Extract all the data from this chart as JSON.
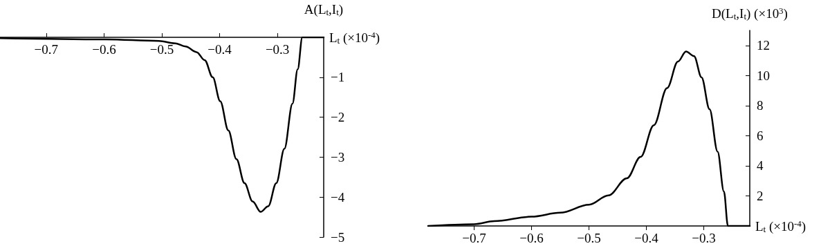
{
  "chart_data": [
    {
      "type": "line",
      "xlabel": "L$_{t}$ (×10$^{-4}$)",
      "ylabel": "A(L$_{t}$,I$_{t}$)",
      "xlim": [
        -0.78,
        -0.22
      ],
      "xticks": [
        -0.7,
        -0.6,
        -0.5,
        -0.4,
        -0.3
      ],
      "ylim": [
        -5,
        0
      ],
      "yticks": [
        -5,
        -4,
        -3,
        -2,
        -1
      ],
      "grid": false,
      "marker": "none",
      "line_style": "solid",
      "series": [
        {
          "color": "#000000",
          "x": [
            -0.78,
            -0.597,
            -0.505,
            -0.477,
            -0.459,
            -0.44,
            -0.426,
            -0.412,
            -0.399,
            -0.385,
            -0.371,
            -0.357,
            -0.343,
            -0.329,
            -0.316,
            -0.302,
            -0.288,
            -0.274,
            -0.265,
            -0.257,
            -0.22
          ],
          "values": [
            -0.02,
            -0.05,
            -0.09,
            -0.15,
            -0.23,
            -0.37,
            -0.57,
            -1.0,
            -1.6,
            -2.33,
            -3.05,
            -3.65,
            -4.11,
            -4.37,
            -4.23,
            -3.65,
            -2.79,
            -1.66,
            -0.8,
            0,
            0
          ]
        }
      ]
    },
    {
      "type": "line",
      "xlabel": "L$_{t}$ (×10$^{-4}$)",
      "ylabel": "D(L$_{t}$,I$_{t}$) (×10$^{3}$)",
      "xlim": [
        -0.78,
        -0.22
      ],
      "xticks": [
        -0.7,
        -0.6,
        -0.5,
        -0.4,
        -0.3
      ],
      "ylim": [
        0,
        13
      ],
      "yticks": [
        2,
        4,
        6,
        8,
        10,
        12
      ],
      "grid": false,
      "marker": "none",
      "line_style": "solid",
      "series": [
        {
          "color": "#000000",
          "x": [
            -0.78,
            -0.7,
            -0.665,
            -0.6,
            -0.55,
            -0.5,
            -0.466,
            -0.434,
            -0.41,
            -0.387,
            -0.364,
            -0.345,
            -0.331,
            -0.317,
            -0.304,
            -0.29,
            -0.276,
            -0.265,
            -0.258,
            -0.22
          ],
          "values": [
            0,
            0.12,
            0.32,
            0.62,
            0.88,
            1.41,
            2.03,
            3.17,
            4.59,
            6.7,
            9.17,
            10.93,
            11.6,
            11.29,
            9.88,
            7.76,
            4.94,
            2.29,
            0,
            0
          ]
        }
      ]
    }
  ]
}
